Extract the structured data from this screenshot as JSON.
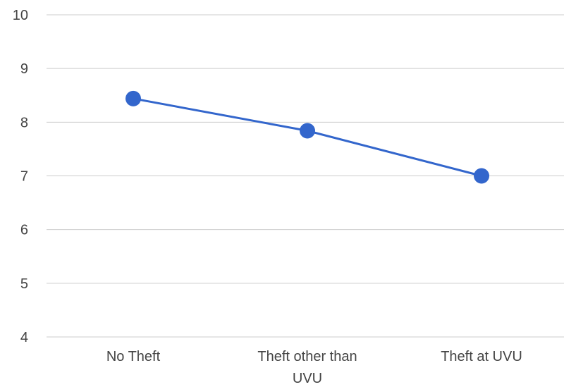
{
  "chart_data": {
    "type": "line",
    "title": "",
    "xlabel": "",
    "ylabel": "",
    "categories": [
      "No Theft",
      "Theft other than UVU",
      "Theft at UVU"
    ],
    "x_tick_lines": [
      [
        "No Theft"
      ],
      [
        "Theft other than",
        "UVU"
      ],
      [
        "Theft at UVU"
      ]
    ],
    "series": [
      {
        "values": [
          8.44,
          7.84,
          7.0
        ],
        "color": "#3366cc"
      }
    ],
    "ylim": [
      4,
      10
    ],
    "yticks": [
      4,
      5,
      6,
      7,
      8,
      9,
      10
    ],
    "grid": true,
    "legend": "none"
  }
}
